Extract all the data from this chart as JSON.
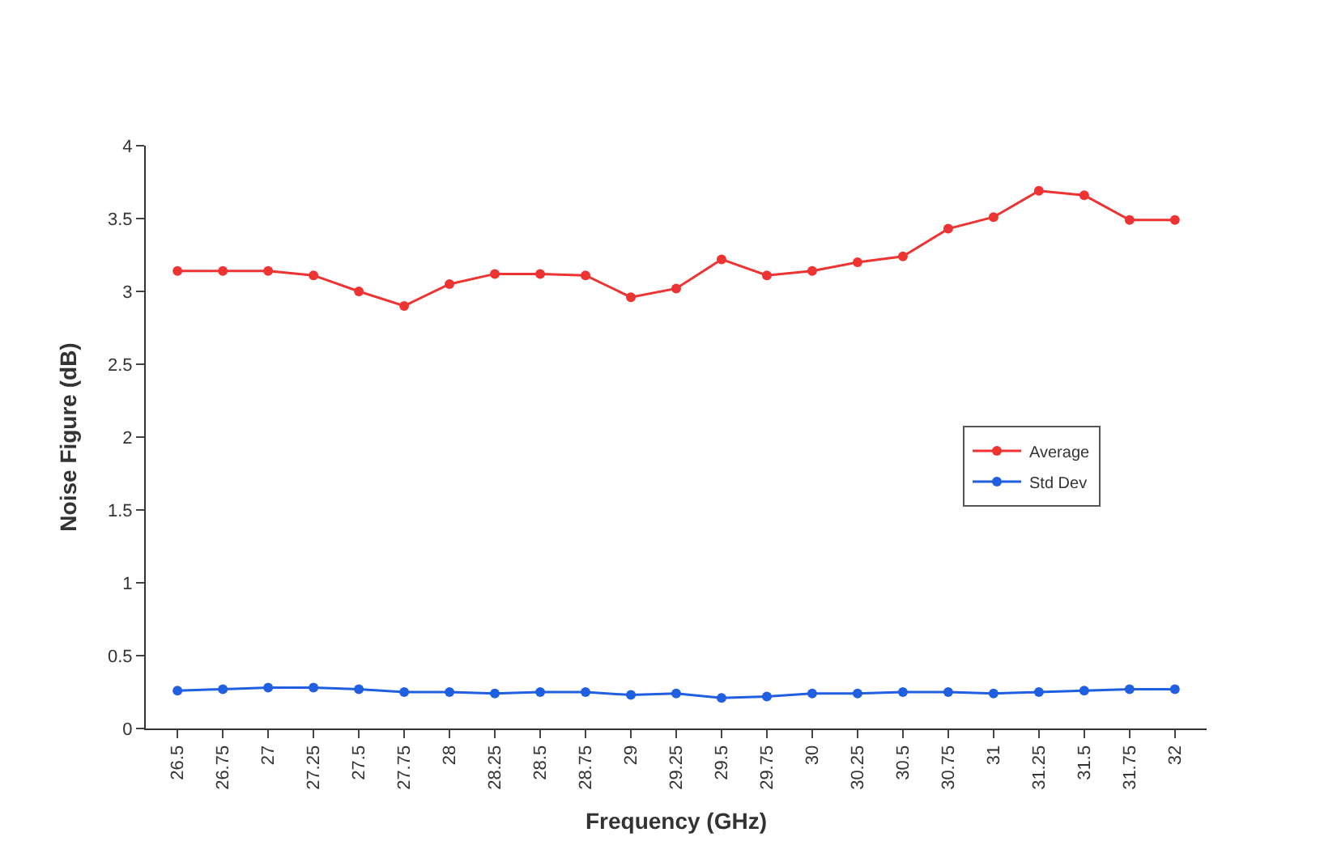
{
  "chart_data": {
    "type": "line",
    "xlabel": "Frequency (GHz)",
    "ylabel": "Noise Figure (dB)",
    "categories": [
      "26.5",
      "26.75",
      "27",
      "27.25",
      "27.5",
      "27.75",
      "28",
      "28.25",
      "28.5",
      "28.75",
      "29",
      "29.25",
      "29.5",
      "29.75",
      "30",
      "30.25",
      "30.5",
      "30.75",
      "31",
      "31.25",
      "31.5",
      "31.75",
      "32"
    ],
    "series": [
      {
        "name": "Average",
        "color": "#ee3333",
        "values": [
          3.14,
          3.14,
          3.14,
          3.11,
          3.0,
          2.9,
          3.05,
          3.12,
          3.12,
          3.11,
          2.96,
          3.02,
          3.22,
          3.11,
          3.14,
          3.2,
          3.24,
          3.43,
          3.51,
          3.69,
          3.66,
          3.49,
          3.49
        ]
      },
      {
        "name": "Std Dev",
        "color": "#1f5fe0",
        "values": [
          0.26,
          0.27,
          0.28,
          0.28,
          0.27,
          0.25,
          0.25,
          0.24,
          0.25,
          0.25,
          0.23,
          0.24,
          0.21,
          0.22,
          0.24,
          0.24,
          0.25,
          0.25,
          0.24,
          0.25,
          0.26,
          0.27,
          0.27
        ]
      }
    ],
    "ylim": [
      0,
      4
    ],
    "yticks": [
      0,
      0.5,
      1,
      1.5,
      2,
      2.5,
      3,
      3.5,
      4
    ],
    "legend": "right",
    "marker": "circle",
    "line_style": "solid"
  }
}
